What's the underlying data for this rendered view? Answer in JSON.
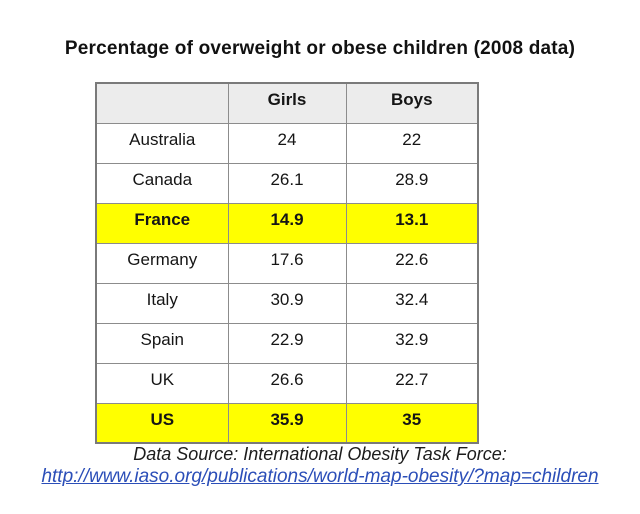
{
  "title": "Percentage of overweight or obese children (2008 data)",
  "table": {
    "columns": [
      "",
      "Girls",
      "Boys"
    ],
    "rows": [
      {
        "country": "Australia",
        "girls": "24",
        "boys": "22",
        "highlight": false
      },
      {
        "country": "Canada",
        "girls": "26.1",
        "boys": "28.9",
        "highlight": false
      },
      {
        "country": "France",
        "girls": "14.9",
        "boys": "13.1",
        "highlight": true
      },
      {
        "country": "Germany",
        "girls": "17.6",
        "boys": "22.6",
        "highlight": false
      },
      {
        "country": "Italy",
        "girls": "30.9",
        "boys": "32.4",
        "highlight": false
      },
      {
        "country": "Spain",
        "girls": "22.9",
        "boys": "32.9",
        "highlight": false
      },
      {
        "country": "UK",
        "girls": "26.6",
        "boys": "22.7",
        "highlight": false
      },
      {
        "country": "US",
        "girls": "35.9",
        "boys": "35",
        "highlight": true
      }
    ]
  },
  "footer": {
    "source_label": "Data Source: International Obesity Task Force:",
    "link_text": "http://www.iaso.org/publications/world-map-obesity/?map=children"
  },
  "colors": {
    "highlight_row": "#ffff00",
    "header_bg": "#ececec",
    "table_border": "#8c8c8c",
    "link_blue": "#2b4eb8",
    "text": "#151515"
  },
  "chart_data": {
    "type": "table",
    "title": "Percentage of overweight or obese children (2008 data)",
    "categories": [
      "Australia",
      "Canada",
      "France",
      "Germany",
      "Italy",
      "Spain",
      "UK",
      "US"
    ],
    "series": [
      {
        "name": "Girls",
        "values": [
          24,
          26.1,
          14.9,
          17.6,
          30.9,
          22.9,
          26.6,
          35.9
        ]
      },
      {
        "name": "Boys",
        "values": [
          22,
          28.9,
          13.1,
          22.6,
          32.4,
          32.9,
          22.7,
          35
        ]
      }
    ],
    "highlighted_rows": [
      "France",
      "US"
    ],
    "source": "Data Source: International Obesity Task Force:",
    "source_url": "http://www.iaso.org/publications/world-map-obesity/?map=children"
  }
}
